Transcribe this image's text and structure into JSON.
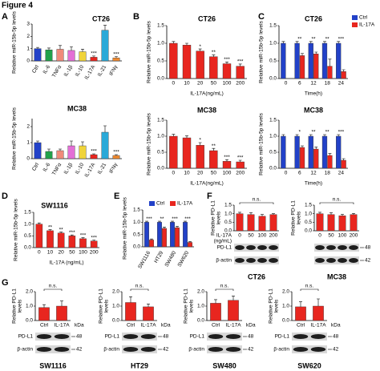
{
  "figure_title": "Figure 4",
  "chart_data": [
    {
      "type": "bar",
      "panel": "A",
      "title": "CT26",
      "ylabel": "Relative miR-15b-5p levels",
      "categories": [
        "Ctrl",
        "IL-6",
        "TNFα",
        "IL-1β",
        "IL-10",
        "IL-17A",
        "IL-21",
        "IFNγ"
      ],
      "values": [
        1.0,
        0.9,
        0.95,
        0.85,
        0.75,
        0.3,
        2.5,
        0.25
      ],
      "errors": [
        0.1,
        0.15,
        0.3,
        0.3,
        0.2,
        0.1,
        0.4,
        0.1
      ],
      "colors": [
        "#2241c8",
        "#22a14a",
        "#f08a7a",
        "#e36fd6",
        "#f0d43a",
        "#e8261f",
        "#2aa9d8",
        "#f08a30"
      ],
      "sig": [
        null,
        null,
        null,
        null,
        null,
        "***",
        null,
        "***"
      ],
      "ylim": [
        0,
        3
      ],
      "yticks": [
        0,
        1,
        2,
        3
      ]
    },
    {
      "type": "bar",
      "title": "MC38",
      "ylabel": "Relative miR-15b-5p levels",
      "categories": [
        "Ctrl",
        "IL-6",
        "TNFα",
        "IL-1β",
        "IL-10",
        "IL-17A",
        "IL-21",
        "IFNγ"
      ],
      "values": [
        1.0,
        0.45,
        0.5,
        0.8,
        0.8,
        0.25,
        1.65,
        0.2
      ],
      "errors": [
        0.1,
        0.15,
        0.1,
        0.3,
        0.25,
        0.05,
        0.4,
        0.05
      ],
      "colors": [
        "#2241c8",
        "#22a14a",
        "#f08a7a",
        "#e36fd6",
        "#f0d43a",
        "#e8261f",
        "#2aa9d8",
        "#f08a30"
      ],
      "sig": [
        null,
        null,
        null,
        null,
        null,
        "***",
        null,
        "***"
      ],
      "ylim": [
        0,
        2.5
      ],
      "yticks": [
        0,
        1,
        2
      ]
    },
    {
      "type": "bar",
      "panel": "B",
      "title": "CT26",
      "ylabel": "Relative miR-15b-5p levels",
      "xlabel": "IL-17A(ng/mL)",
      "categories": [
        "0",
        "10",
        "20",
        "50",
        "100",
        "200"
      ],
      "values": [
        1.0,
        0.95,
        0.78,
        0.62,
        0.42,
        0.35
      ],
      "errors": [
        0.05,
        0.05,
        0.06,
        0.05,
        0.05,
        0.06
      ],
      "color": "#e8261f",
      "sig": [
        null,
        null,
        "*",
        "**",
        "***",
        "***"
      ],
      "ylim": [
        0,
        1.5
      ],
      "yticks": [
        {
          "value": 0,
          "label": "0.0"
        },
        0.5,
        {
          "value": 1,
          "label": "1.0"
        },
        1.5
      ]
    },
    {
      "type": "bar",
      "title": "MC38",
      "ylabel": "Relative miR-15b-5p levels",
      "xlabel": "IL-17A(ng/mL)",
      "categories": [
        "0",
        "10",
        "20",
        "50",
        "100",
        "200"
      ],
      "values": [
        1.0,
        0.95,
        0.72,
        0.55,
        0.22,
        0.2
      ],
      "errors": [
        0.06,
        0.06,
        0.08,
        0.07,
        0.05,
        0.05
      ],
      "color": "#e8261f",
      "sig": [
        null,
        null,
        "*",
        "**",
        "***",
        "***"
      ],
      "ylim": [
        0,
        1.5
      ],
      "yticks": [
        {
          "value": 0,
          "label": "0.0"
        },
        0.5,
        {
          "value": 1,
          "label": "1.0"
        },
        1.5
      ]
    },
    {
      "type": "grouped_bar",
      "panel": "C",
      "title": "CT26",
      "ylabel": "Relative miR-15b-5p levels",
      "xlabel": "Time(h)",
      "categories": [
        "0",
        "6",
        "12",
        "18",
        "24"
      ],
      "legend": "right",
      "series": [
        {
          "name": "Ctrl",
          "color": "#2241c8",
          "values": [
            1.0,
            1.0,
            1.0,
            1.0,
            1.0
          ],
          "errors": [
            0.05,
            0.05,
            0.05,
            0.05,
            0.05
          ]
        },
        {
          "name": "IL-17A",
          "color": "#e8261f",
          "values": [
            null,
            0.65,
            0.7,
            0.35,
            0.2
          ],
          "errors": [
            null,
            0.06,
            0.05,
            0.2,
            0.05
          ]
        }
      ],
      "sig": [
        null,
        "**",
        "**",
        "**",
        "***"
      ],
      "ylim": [
        0,
        1.5
      ],
      "yticks": [
        {
          "value": 0,
          "label": "0.0"
        },
        0.5,
        {
          "value": 1,
          "label": "1.0"
        },
        1.5
      ]
    },
    {
      "type": "grouped_bar",
      "title": "MC38",
      "ylabel": "Relative miR-15b-5p levels",
      "xlabel": "Time(h)",
      "categories": [
        "0",
        "6",
        "12",
        "18",
        "24"
      ],
      "series": [
        {
          "name": "Ctrl",
          "color": "#2241c8",
          "values": [
            1.0,
            1.0,
            1.0,
            1.0,
            1.0
          ],
          "errors": [
            0.05,
            0.05,
            0.05,
            0.05,
            0.05
          ]
        },
        {
          "name": "IL-17A",
          "color": "#e8261f",
          "values": [
            null,
            0.65,
            0.6,
            0.4,
            0.25
          ],
          "errors": [
            null,
            0.05,
            0.06,
            0.06,
            0.05
          ]
        }
      ],
      "sig": [
        null,
        "*",
        "**",
        "**",
        "***"
      ],
      "ylim": [
        0,
        1.5
      ],
      "yticks": [
        {
          "value": 0,
          "label": "0.0"
        },
        0.5,
        {
          "value": 1,
          "label": "1.0"
        },
        1.5
      ]
    },
    {
      "type": "bar",
      "panel": "D",
      "title": "SW1116",
      "ylabel": "Relative miR-15b-5p levels",
      "xlabel": "IL-17A (ng/mL)",
      "categories": [
        "0",
        "10",
        "20",
        "50",
        "100",
        "200"
      ],
      "values": [
        1.0,
        0.72,
        0.62,
        0.5,
        0.38,
        0.28
      ],
      "errors": [
        0.05,
        0.04,
        0.04,
        0.04,
        0.04,
        0.04
      ],
      "color": "#e8261f",
      "sig": [
        null,
        "**",
        "**",
        "***",
        "***",
        "***"
      ],
      "ylim": [
        0,
        1.5
      ],
      "yticks": [
        {
          "value": 0,
          "label": "0.0"
        },
        0.5,
        {
          "value": 1,
          "label": "1.0"
        },
        1.5
      ]
    },
    {
      "type": "grouped_bar",
      "panel": "E",
      "ylabel": "Relative miR-15b-5p levels",
      "categories": [
        "SW1116",
        "HT29",
        "SW480",
        "SW620"
      ],
      "legend": "top",
      "series": [
        {
          "name": "Ctrl",
          "color": "#2241c8",
          "values": [
            1.0,
            1.0,
            1.0,
            1.0
          ],
          "errors": [
            0.04,
            0.04,
            0.04,
            0.04
          ]
        },
        {
          "name": "IL-17A",
          "color": "#e8261f",
          "values": [
            0.28,
            0.75,
            0.78,
            0.18
          ],
          "errors": [
            0.04,
            0.05,
            0.05,
            0.03
          ]
        }
      ],
      "sig": [
        "***",
        "**",
        "***",
        "***"
      ],
      "ylim": [
        0,
        1.5
      ],
      "yticks": [
        {
          "value": 0,
          "label": "0.0"
        },
        0.5,
        {
          "value": 1,
          "label": "1.0"
        },
        1.5
      ]
    },
    {
      "type": "bar",
      "panel": "F",
      "title": "CT26",
      "ylabel": [
        "Relative PD-L1",
        "levels"
      ],
      "xlabel": [
        "IL-17A",
        "(ng/mL)"
      ],
      "categories": [
        "0",
        "50",
        "100",
        "200"
      ],
      "values": [
        1.0,
        0.95,
        0.85,
        0.95
      ],
      "errors": [
        0.08,
        0.1,
        0.1,
        0.05
      ],
      "color": "#e8261f",
      "annotation": "n.s.",
      "ylim": [
        0,
        1.5
      ],
      "yticks": [
        {
          "value": 0,
          "label": "0.0"
        },
        0.5,
        {
          "value": 1,
          "label": "1.0"
        },
        1.5
      ],
      "blot": {
        "rows": [
          "PD-L1",
          "β-actin"
        ]
      }
    },
    {
      "type": "bar",
      "title": "MC38",
      "ylabel": [
        "Relative PD-L1",
        "levels"
      ],
      "categories": [
        "0",
        "50",
        "100",
        "200"
      ],
      "values": [
        1.0,
        0.95,
        0.88,
        0.95
      ],
      "errors": [
        0.08,
        0.1,
        0.08,
        0.06
      ],
      "color": "#e8261f",
      "annotation": "n.s.",
      "ylim": [
        0,
        1.5
      ],
      "yticks": [
        {
          "value": 0,
          "label": "0.0"
        },
        0.5,
        {
          "value": 1,
          "label": "1.0"
        },
        1.5
      ],
      "blot": {
        "markers": [
          48,
          42
        ]
      }
    },
    {
      "type": "bar",
      "panel": "G",
      "title": "SW1116",
      "ylabel": [
        "Relative PD-L1",
        "levels"
      ],
      "categories": [
        "Ctrl",
        "IL-17A"
      ],
      "values": [
        0.9,
        1.0
      ],
      "errors": [
        0.2,
        0.35
      ],
      "color": "#e8261f",
      "annotation": "n.s.",
      "ylim": [
        0,
        2
      ],
      "yticks": [
        {
          "value": 0,
          "label": "0.0"
        },
        {
          "value": 1,
          "label": "1.0"
        },
        {
          "value": 2,
          "label": "2.0"
        }
      ],
      "blot": {
        "rows": [
          "PD-L1",
          "β-actin"
        ],
        "markers": [
          48,
          42
        ],
        "kda": "kDa"
      }
    },
    {
      "type": "bar",
      "title": "HT29",
      "ylabel": [
        "Relative PD-L1",
        "levels"
      ],
      "categories": [
        "Ctrl",
        "IL-17A"
      ],
      "values": [
        1.25,
        0.95
      ],
      "errors": [
        0.4,
        0.2
      ],
      "color": "#e8261f",
      "annotation": "n.s.",
      "ylim": [
        0,
        2
      ],
      "yticks": [
        {
          "value": 0,
          "label": "0.0"
        },
        {
          "value": 1,
          "label": "1.0"
        },
        {
          "value": 2,
          "label": "2.0"
        }
      ],
      "blot": {
        "rows": [
          "PD-L1",
          "β-actin"
        ],
        "markers": [
          48,
          42
        ],
        "kda": "kDa"
      }
    },
    {
      "type": "bar",
      "title": "SW480",
      "ylabel": [
        "Relative PD-L1",
        "levels"
      ],
      "categories": [
        "Ctrl",
        "IL-17A"
      ],
      "values": [
        1.2,
        1.4
      ],
      "errors": [
        0.25,
        0.3
      ],
      "color": "#e8261f",
      "annotation": "n.s.",
      "ylim": [
        0,
        2
      ],
      "yticks": [
        {
          "value": 0,
          "label": "0.0"
        },
        {
          "value": 1,
          "label": "1.0"
        },
        {
          "value": 2,
          "label": "2.0"
        }
      ],
      "blot": {
        "rows": [
          "PD-L1",
          "β-actin"
        ],
        "markers": [
          48,
          42
        ],
        "kda": "kDa"
      }
    },
    {
      "type": "bar",
      "title": "SW620",
      "ylabel": [
        "Relative PD-L1",
        "levels"
      ],
      "categories": [
        "Ctrl",
        "IL-17A"
      ],
      "values": [
        0.95,
        1.0
      ],
      "errors": [
        0.35,
        0.5
      ],
      "color": "#e8261f",
      "annotation": "n.s.",
      "ylim": [
        0,
        2
      ],
      "yticks": [
        {
          "value": 0,
          "label": "0.0"
        },
        {
          "value": 1,
          "label": "1.0"
        },
        {
          "value": 2,
          "label": "2.0"
        }
      ],
      "blot": {
        "rows": [
          "PD-L1",
          "β-actin"
        ],
        "markers": [
          48,
          42
        ],
        "kda": "kDa"
      }
    }
  ]
}
